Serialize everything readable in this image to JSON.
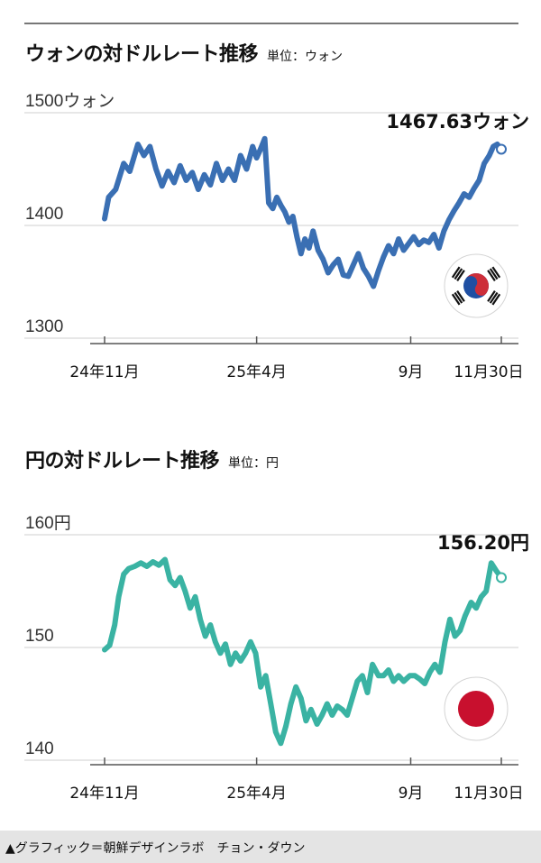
{
  "charts": [
    {
      "title": "ウォンの対ドルレート推移",
      "unit_label": "単位：ウォン",
      "last_value_label": "1467.63ウォン",
      "flag": "south-korea-flag",
      "line_color": "#3a6fb3"
    },
    {
      "title": "円の対ドルレート推移",
      "unit_label": "単位：円",
      "last_value_label": "156.20円",
      "flag": "japan-flag",
      "line_color": "#3ab3a3"
    }
  ],
  "footer": {
    "credit": "▲グラフィック＝朝鮮デザインラボ　チョン・ダウン"
  },
  "chart_data": [
    {
      "type": "line",
      "title": "ウォンの対ドルレート推移",
      "xlabel": "",
      "ylabel": "",
      "unit": "単位：ウォン",
      "ylim": [
        1300,
        1500
      ],
      "yticks": [
        1300,
        1400,
        1500
      ],
      "ytick_labels": [
        "1300",
        "1400",
        "1500ウォン"
      ],
      "xticks": [
        {
          "x": "2024-11-01",
          "label": "24年11月"
        },
        {
          "x": "2025-04-01",
          "label": "25年4月"
        },
        {
          "x": "2025-09-01",
          "label": "9月"
        },
        {
          "x": "2025-11-30",
          "label": "11月30日"
        }
      ],
      "series": [
        {
          "values": [
            [
              "2024-11-01",
              1406
            ],
            [
              "2024-11-05",
              1425
            ],
            [
              "2024-11-12",
              1432
            ],
            [
              "2024-11-20",
              1455
            ],
            [
              "2024-11-26",
              1448
            ],
            [
              "2024-12-04",
              1472
            ],
            [
              "2024-12-10",
              1462
            ],
            [
              "2024-12-16",
              1470
            ],
            [
              "2024-12-22",
              1450
            ],
            [
              "2024-12-28",
              1435
            ],
            [
              "2025-01-03",
              1448
            ],
            [
              "2025-01-09",
              1438
            ],
            [
              "2025-01-15",
              1453
            ],
            [
              "2025-01-21",
              1440
            ],
            [
              "2025-01-27",
              1447
            ],
            [
              "2025-02-02",
              1432
            ],
            [
              "2025-02-08",
              1445
            ],
            [
              "2025-02-14",
              1436
            ],
            [
              "2025-02-20",
              1455
            ],
            [
              "2025-02-26",
              1440
            ],
            [
              "2025-03-04",
              1450
            ],
            [
              "2025-03-10",
              1440
            ],
            [
              "2025-03-16",
              1462
            ],
            [
              "2025-03-22",
              1450
            ],
            [
              "2025-03-28",
              1470
            ],
            [
              "2025-04-01",
              1460
            ],
            [
              "2025-04-05",
              1468
            ],
            [
              "2025-04-09",
              1477
            ],
            [
              "2025-04-13",
              1420
            ],
            [
              "2025-04-17",
              1415
            ],
            [
              "2025-04-21",
              1425
            ],
            [
              "2025-04-25",
              1418
            ],
            [
              "2025-04-29",
              1412
            ],
            [
              "2025-05-03",
              1403
            ],
            [
              "2025-05-07",
              1408
            ],
            [
              "2025-05-11",
              1390
            ],
            [
              "2025-05-15",
              1375
            ],
            [
              "2025-05-19",
              1388
            ],
            [
              "2025-05-23",
              1380
            ],
            [
              "2025-05-27",
              1395
            ],
            [
              "2025-06-01",
              1378
            ],
            [
              "2025-06-06",
              1370
            ],
            [
              "2025-06-11",
              1358
            ],
            [
              "2025-06-16",
              1365
            ],
            [
              "2025-06-21",
              1370
            ],
            [
              "2025-06-26",
              1356
            ],
            [
              "2025-07-01",
              1355
            ],
            [
              "2025-07-06",
              1365
            ],
            [
              "2025-07-11",
              1375
            ],
            [
              "2025-07-16",
              1362
            ],
            [
              "2025-07-21",
              1355
            ],
            [
              "2025-07-26",
              1346
            ],
            [
              "2025-07-31",
              1360
            ],
            [
              "2025-08-05",
              1372
            ],
            [
              "2025-08-10",
              1382
            ],
            [
              "2025-08-15",
              1375
            ],
            [
              "2025-08-20",
              1388
            ],
            [
              "2025-08-25",
              1378
            ],
            [
              "2025-08-30",
              1384
            ],
            [
              "2025-09-04",
              1390
            ],
            [
              "2025-09-09",
              1383
            ],
            [
              "2025-09-14",
              1387
            ],
            [
              "2025-09-19",
              1385
            ],
            [
              "2025-09-24",
              1392
            ],
            [
              "2025-09-29",
              1380
            ],
            [
              "2025-10-04",
              1395
            ],
            [
              "2025-10-09",
              1405
            ],
            [
              "2025-10-14",
              1413
            ],
            [
              "2025-10-19",
              1420
            ],
            [
              "2025-10-24",
              1428
            ],
            [
              "2025-10-29",
              1425
            ],
            [
              "2025-11-03",
              1433
            ],
            [
              "2025-11-08",
              1440
            ],
            [
              "2025-11-13",
              1455
            ],
            [
              "2025-11-18",
              1462
            ],
            [
              "2025-11-22",
              1470
            ],
            [
              "2025-11-26",
              1472
            ],
            [
              "2025-11-30",
              1467.63
            ]
          ]
        }
      ]
    },
    {
      "type": "line",
      "title": "円の対ドルレート推移",
      "xlabel": "",
      "ylabel": "",
      "unit": "単位：円",
      "ylim": [
        140,
        160
      ],
      "yticks": [
        140,
        150,
        160
      ],
      "ytick_labels": [
        "140",
        "150",
        "160円"
      ],
      "xticks": [
        {
          "x": "2024-11-01",
          "label": "24年11月"
        },
        {
          "x": "2025-04-01",
          "label": "25年4月"
        },
        {
          "x": "2025-09-01",
          "label": "9月"
        },
        {
          "x": "2025-11-30",
          "label": "11月30日"
        }
      ],
      "series": [
        {
          "values": [
            [
              "2024-11-01",
              149.8
            ],
            [
              "2024-11-06",
              150.2
            ],
            [
              "2024-11-11",
              152.0
            ],
            [
              "2024-11-15",
              154.5
            ],
            [
              "2024-11-20",
              156.5
            ],
            [
              "2024-11-25",
              157.0
            ],
            [
              "2024-12-01",
              157.2
            ],
            [
              "2024-12-07",
              157.5
            ],
            [
              "2024-12-13",
              157.2
            ],
            [
              "2024-12-19",
              157.6
            ],
            [
              "2024-12-25",
              157.3
            ],
            [
              "2024-12-31",
              157.8
            ],
            [
              "2025-01-05",
              156.0
            ],
            [
              "2025-01-10",
              155.5
            ],
            [
              "2025-01-15",
              156.2
            ],
            [
              "2025-01-20",
              155.0
            ],
            [
              "2025-01-25",
              153.5
            ],
            [
              "2025-01-30",
              154.5
            ],
            [
              "2025-02-04",
              152.5
            ],
            [
              "2025-02-09",
              151.0
            ],
            [
              "2025-02-14",
              152.0
            ],
            [
              "2025-02-19",
              150.5
            ],
            [
              "2025-02-24",
              149.5
            ],
            [
              "2025-03-01",
              150.3
            ],
            [
              "2025-03-06",
              148.5
            ],
            [
              "2025-03-11",
              149.5
            ],
            [
              "2025-03-16",
              148.8
            ],
            [
              "2025-03-21",
              149.5
            ],
            [
              "2025-03-26",
              150.5
            ],
            [
              "2025-03-31",
              149.5
            ],
            [
              "2025-04-05",
              146.5
            ],
            [
              "2025-04-10",
              147.5
            ],
            [
              "2025-04-15",
              145.0
            ],
            [
              "2025-04-20",
              142.5
            ],
            [
              "2025-04-25",
              141.5
            ],
            [
              "2025-04-30",
              143.0
            ],
            [
              "2025-05-05",
              145.0
            ],
            [
              "2025-05-10",
              146.5
            ],
            [
              "2025-05-15",
              145.5
            ],
            [
              "2025-05-20",
              143.5
            ],
            [
              "2025-05-25",
              144.5
            ],
            [
              "2025-05-31",
              143.2
            ],
            [
              "2025-06-05",
              144.0
            ],
            [
              "2025-06-10",
              145.0
            ],
            [
              "2025-06-15",
              144.0
            ],
            [
              "2025-06-20",
              144.8
            ],
            [
              "2025-06-25",
              144.5
            ],
            [
              "2025-06-30",
              144.0
            ],
            [
              "2025-07-05",
              145.5
            ],
            [
              "2025-07-10",
              147.0
            ],
            [
              "2025-07-15",
              147.5
            ],
            [
              "2025-07-20",
              146.0
            ],
            [
              "2025-07-25",
              148.5
            ],
            [
              "2025-07-31",
              147.5
            ],
            [
              "2025-08-05",
              147.5
            ],
            [
              "2025-08-10",
              148.0
            ],
            [
              "2025-08-15",
              147.0
            ],
            [
              "2025-08-20",
              147.5
            ],
            [
              "2025-08-25",
              147.0
            ],
            [
              "2025-08-31",
              147.5
            ],
            [
              "2025-09-05",
              147.5
            ],
            [
              "2025-09-10",
              147.2
            ],
            [
              "2025-09-15",
              146.8
            ],
            [
              "2025-09-20",
              147.8
            ],
            [
              "2025-09-25",
              148.5
            ],
            [
              "2025-09-30",
              147.8
            ],
            [
              "2025-10-05",
              150.5
            ],
            [
              "2025-10-10",
              152.5
            ],
            [
              "2025-10-15",
              151.0
            ],
            [
              "2025-10-20",
              151.5
            ],
            [
              "2025-10-25",
              152.8
            ],
            [
              "2025-10-31",
              154.0
            ],
            [
              "2025-11-05",
              153.5
            ],
            [
              "2025-11-10",
              154.5
            ],
            [
              "2025-11-15",
              155.0
            ],
            [
              "2025-11-20",
              157.5
            ],
            [
              "2025-11-25",
              156.8
            ],
            [
              "2025-11-30",
              156.2
            ]
          ]
        }
      ]
    }
  ]
}
